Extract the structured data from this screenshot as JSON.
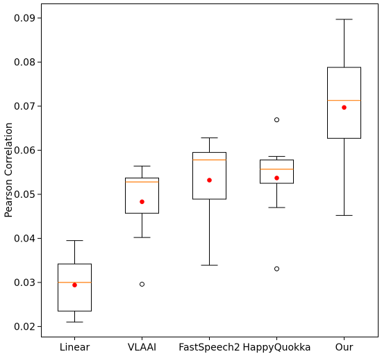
{
  "chart_data": {
    "type": "box",
    "title": "",
    "xlabel": "",
    "ylabel": "Pearson Correlation",
    "ylim": [
      0.0177,
      0.0933
    ],
    "yticks": [
      0.02,
      0.03,
      0.04,
      0.05,
      0.06,
      0.07,
      0.08,
      0.09
    ],
    "ytick_labels": [
      "0.02",
      "0.03",
      "0.04",
      "0.05",
      "0.06",
      "0.07",
      "0.08",
      "0.09"
    ],
    "categories": [
      "Linear",
      "VLAAI",
      "FastSpeech2",
      "HappyQuokka",
      "Our"
    ],
    "boxes": [
      {
        "category": "Linear",
        "whisker_low": 0.021,
        "q1": 0.0235,
        "median": 0.03,
        "q3": 0.0342,
        "whisker_high": 0.0395,
        "mean": 0.0294,
        "outliers": []
      },
      {
        "category": "VLAAI",
        "whisker_low": 0.0402,
        "q1": 0.0457,
        "median": 0.0528,
        "q3": 0.0537,
        "whisker_high": 0.0564,
        "mean": 0.0483,
        "outliers": [
          0.0296
        ]
      },
      {
        "category": "FastSpeech2",
        "whisker_low": 0.0339,
        "q1": 0.0489,
        "median": 0.0578,
        "q3": 0.0595,
        "whisker_high": 0.0628,
        "mean": 0.0532,
        "outliers": []
      },
      {
        "category": "HappyQuokka",
        "whisker_low": 0.047,
        "q1": 0.0525,
        "median": 0.0557,
        "q3": 0.0578,
        "whisker_high": 0.0586,
        "mean": 0.0537,
        "outliers": [
          0.0669,
          0.0331
        ]
      },
      {
        "category": "Our",
        "whisker_low": 0.0452,
        "q1": 0.0627,
        "median": 0.0713,
        "q3": 0.0788,
        "whisker_high": 0.0897,
        "mean": 0.0697,
        "outliers": []
      }
    ],
    "colors": {
      "box": "#000000",
      "median": "#ff7f0e",
      "mean": "#ff0000",
      "outlier_edge": "#000000",
      "background": "#ffffff"
    },
    "grid": false,
    "legend": "none"
  }
}
